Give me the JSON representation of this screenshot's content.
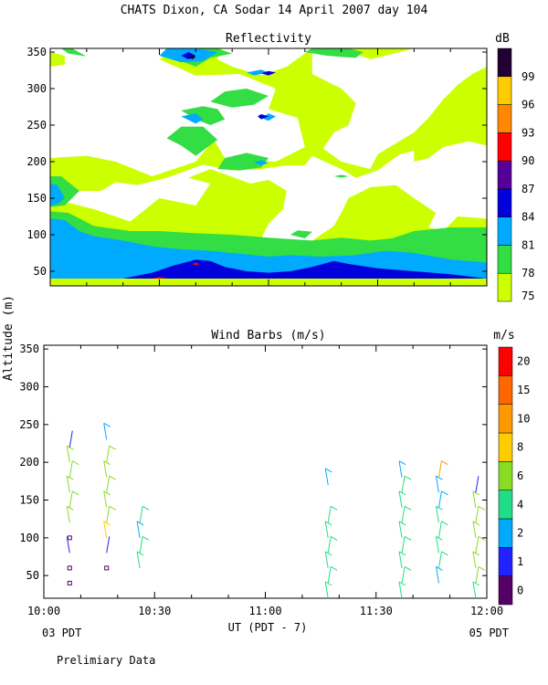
{
  "title": "CHATS Dixon, CA  Sodar  14 April 2007  day 104",
  "y_axis_label": "Altitude (m)",
  "x_axis_label": "UT  (PDT - 7)",
  "x_left_note": "03 PDT",
  "x_right_note": "05 PDT",
  "footer_note": "Prelimiary Data",
  "colors": {
    "white": "#ffffff",
    "c75": "#ccff00",
    "c78": "#33dd44",
    "c81": "#00aaff",
    "c84": "#0000dd",
    "c87": "#550099",
    "c90": "#ff0000",
    "c93": "#ff8800",
    "c96": "#ffcc00",
    "c99": "#220033"
  },
  "chart_data": [
    {
      "type": "heatmap",
      "title": "Reflectivity",
      "xlabel": "UT  (PDT - 7)",
      "ylabel": "Altitude (m)",
      "xlim_minutes_after_1000": [
        0,
        120
      ],
      "ylim": [
        30,
        355
      ],
      "yticks": [
        50,
        100,
        150,
        200,
        250,
        300,
        350
      ],
      "xticks": [
        "10:00",
        "10:30",
        "11:00",
        "11:30",
        "12:00"
      ],
      "colorbar": {
        "unit": "dB",
        "levels": [
          75,
          78,
          81,
          84,
          87,
          90,
          93,
          96,
          99
        ],
        "colors": [
          "#ccff00",
          "#33dd44",
          "#00aaff",
          "#0000dd",
          "#550099",
          "#ff0000",
          "#ff8800",
          "#ffcc00",
          "#220033"
        ]
      },
      "approx_layers": [
        {
          "level": 75,
          "description": "widespread between 60 and 350 m with clear patches"
        },
        {
          "level": 78,
          "description": "band 50-120 m, pockets aloft"
        },
        {
          "level": 81,
          "description": "band 40-90 m"
        },
        {
          "level": 84,
          "description": "thin band near 40-65 m around 10:25-10:50 and 11:15-11:40"
        }
      ]
    },
    {
      "type": "scatter",
      "title": "Wind Barbs (m/s)",
      "xlabel": "UT  (PDT - 7)",
      "ylabel": "Altitude (m)",
      "xlim_minutes_after_1000": [
        0,
        120
      ],
      "ylim": [
        20,
        355
      ],
      "yticks": [
        50,
        100,
        150,
        200,
        250,
        300,
        350
      ],
      "xticks": [
        "10:00",
        "10:30",
        "11:00",
        "11:30",
        "12:00"
      ],
      "colorbar": {
        "unit": "m/s",
        "levels": [
          0,
          1,
          2,
          4,
          6,
          8,
          10,
          15,
          20
        ],
        "colors": [
          "#550066",
          "#2222ff",
          "#00aaff",
          "#22dd88",
          "#88dd22",
          "#ffcc00",
          "#ff9900",
          "#ff6600",
          "#ff0000"
        ]
      },
      "barb_columns": [
        {
          "time_min": 7,
          "heights": [
            40,
            60,
            80,
            100,
            120,
            140,
            160,
            180,
            200,
            220
          ],
          "speeds": [
            0.5,
            0.5,
            1,
            0.5,
            6,
            6,
            6,
            6,
            6,
            1
          ]
        },
        {
          "time_min": 17,
          "heights": [
            60,
            80,
            100,
            120,
            140,
            160,
            180,
            200,
            230
          ],
          "speeds": [
            0.5,
            1,
            8,
            6,
            6,
            6,
            6,
            6,
            2
          ]
        },
        {
          "time_min": 26,
          "heights": [
            60,
            80,
            100,
            120
          ],
          "speeds": [
            4,
            4,
            2,
            4
          ]
        },
        {
          "time_min": 77,
          "heights": [
            20,
            40,
            60,
            80,
            100,
            120,
            170
          ],
          "speeds": [
            4,
            4,
            4,
            4,
            4,
            4,
            2
          ]
        },
        {
          "time_min": 97,
          "heights": [
            20,
            40,
            60,
            80,
            100,
            120,
            140,
            160,
            180
          ],
          "speeds": [
            4,
            4,
            4,
            4,
            4,
            4,
            4,
            4,
            2
          ]
        },
        {
          "time_min": 107,
          "heights": [
            40,
            60,
            80,
            100,
            120,
            140,
            160,
            180
          ],
          "speeds": [
            2,
            4,
            4,
            4,
            4,
            2,
            2,
            10
          ]
        },
        {
          "time_min": 117,
          "heights": [
            20,
            40,
            60,
            80,
            100,
            120,
            140,
            160
          ],
          "speeds": [
            4,
            6,
            6,
            6,
            6,
            6,
            6,
            1
          ]
        }
      ]
    }
  ]
}
